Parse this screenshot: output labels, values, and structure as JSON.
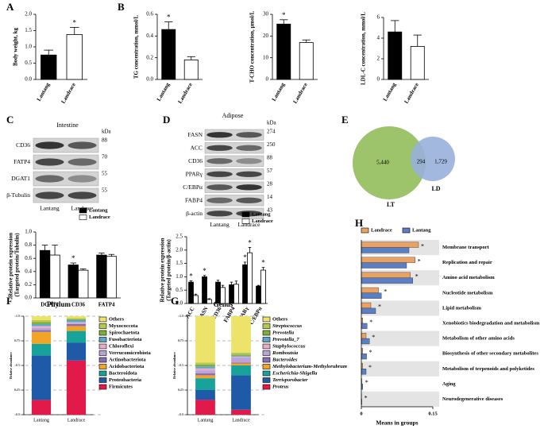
{
  "panels": [
    "A",
    "B",
    "C",
    "D",
    "E",
    "F",
    "G",
    "H"
  ],
  "blots": [
    {
      "title": "Intestine",
      "unit": "kDa",
      "lanes": [
        "Lantang",
        "Landrace"
      ],
      "rows": [
        {
          "label": "CD36",
          "kda": 88
        },
        {
          "label": "FATP4",
          "kda": 70
        },
        {
          "label": "DGAT1",
          "kda": 55
        },
        {
          "label": "β-Tubulin",
          "kda": 55
        }
      ]
    },
    {
      "title": "Adipose",
      "unit": "kDa",
      "lanes": [
        "Lantang",
        "Landrace"
      ],
      "rows": [
        {
          "label": "FASN",
          "kda": 274
        },
        {
          "label": "ACC",
          "kda": 250
        },
        {
          "label": "CD36",
          "kda": 88
        },
        {
          "label": "PPARγ",
          "kda": 57
        },
        {
          "label": "C/EBPα",
          "kda": 28
        },
        {
          "label": "FABP4",
          "kda": 14
        },
        {
          "label": "β-actin",
          "kda": 43
        }
      ]
    }
  ],
  "chart_data": [
    {
      "type": "bar",
      "ylabel": "Body weight, kg",
      "categories": [
        "Lantang",
        "Landrace"
      ],
      "values": [
        0.75,
        1.38
      ],
      "errors": [
        0.15,
        0.22
      ],
      "significance": [
        null,
        "*"
      ],
      "colors": [
        "#000000",
        "#ffffff"
      ],
      "ylim": [
        0,
        2
      ],
      "yticks": [
        {
          "value": 0,
          "label": "0.0"
        },
        0.5,
        {
          "value": 1,
          "label": "1.0"
        },
        1.5,
        {
          "value": 2,
          "label": "2.0"
        }
      ]
    },
    {
      "type": "bar",
      "ylabel": "TG concentration, mmol/L",
      "categories": [
        "Lantang",
        "Landrace"
      ],
      "values": [
        0.46,
        0.18
      ],
      "errors": [
        0.07,
        0.03
      ],
      "significance": [
        "*",
        null
      ],
      "colors": [
        "#000000",
        "#ffffff"
      ],
      "ylim": [
        0,
        0.6
      ],
      "yticks": [
        {
          "value": 0,
          "label": "0.0"
        },
        0.2,
        0.4,
        0.6
      ]
    },
    {
      "type": "bar",
      "ylabel": "T-CHO concentration, μmol/L",
      "categories": [
        "Lantang",
        "Landrace"
      ],
      "values": [
        25.5,
        17
      ],
      "errors": [
        2,
        1.2
      ],
      "significance": [
        "*",
        null
      ],
      "colors": [
        "#000000",
        "#ffffff"
      ],
      "ylim": [
        0,
        30
      ],
      "yticks": [
        0,
        10,
        20,
        30
      ]
    },
    {
      "type": "bar",
      "ylabel": "LDL-C concentration, mmol/L",
      "categories": [
        "Lantang",
        "Landrace"
      ],
      "values": [
        4.6,
        3.2
      ],
      "errors": [
        1.1,
        1.1
      ],
      "colors": [
        "#000000",
        "#ffffff"
      ],
      "ylim": [
        0,
        6
      ],
      "yticks": [
        0,
        2,
        4,
        6
      ]
    },
    {
      "type": "bar",
      "ylabel": [
        "Relative protein expression",
        "(Targeted protein/Tubulin)"
      ],
      "categories": [
        "DGAT1",
        "CD36",
        "FATP4"
      ],
      "series": [
        {
          "name": "Lantang",
          "color": "#000000",
          "values": [
            0.72,
            0.5,
            0.65
          ],
          "errors": [
            0.08,
            0.03,
            0.03
          ],
          "significance": [
            null,
            "*",
            null
          ]
        },
        {
          "name": "Landrace",
          "color": "#ffffff",
          "values": [
            0.65,
            0.42,
            0.63
          ],
          "errors": [
            0.15,
            0.02,
            0.03
          ]
        }
      ],
      "ylim": [
        0,
        1
      ],
      "yticks": [
        {
          "value": 0,
          "label": "0.0"
        },
        0.2,
        0.4,
        0.6,
        0.8,
        {
          "value": 1,
          "label": "1.0"
        }
      ]
    },
    {
      "type": "bar",
      "ylabel": [
        "Relative protein expression",
        "(Targeted protein/β-actin)"
      ],
      "categories": [
        "ACC",
        "FASN",
        "CD36",
        "FABP4",
        "PPARγ",
        "C/EBPα"
      ],
      "series": [
        {
          "name": "Lantang",
          "color": "#000000",
          "values": [
            0.8,
            1.0,
            0.8,
            0.7,
            1.45,
            0.65
          ],
          "errors": [
            0.05,
            0.05,
            0.07,
            0.1,
            0.1,
            0.03
          ],
          "significance": [
            "*",
            "*",
            null,
            null,
            "*",
            null
          ]
        },
        {
          "name": "Landrace",
          "color": "#ffffff",
          "values": [
            0.3,
            0.15,
            0.6,
            0.72,
            1.9,
            1.25
          ],
          "errors": [
            0.05,
            0.03,
            0.08,
            0.12,
            0.2,
            0.1
          ],
          "significance": [
            null,
            null,
            null,
            null,
            "*",
            "*"
          ]
        }
      ],
      "ylim": [
        0,
        2.5
      ],
      "yticks": [
        {
          "value": 0,
          "label": "0.0"
        },
        0.5,
        {
          "value": 1,
          "label": "1.0"
        },
        1.5,
        {
          "value": 2,
          "label": "2.0"
        },
        2.5
      ]
    },
    {
      "type": "venn",
      "sets": [
        {
          "name": "LT",
          "color": "#9dc46a"
        },
        {
          "name": "LD",
          "color": "#98b0dc"
        }
      ],
      "values": [
        5440,
        294,
        1729
      ],
      "value_labels": [
        "5,440",
        "294",
        "1,729"
      ]
    },
    {
      "type": "stacked",
      "title": "Phylum",
      "ylabel": "Relative abundance",
      "categories": [
        "Lantang",
        "Landrace"
      ],
      "grid": true,
      "ylim": [
        0,
        1
      ],
      "yticks": [
        {
          "value": 0,
          "label": "0.0"
        },
        0.25,
        0.5,
        0.75,
        {
          "value": 1,
          "label": "1.0"
        }
      ],
      "series": [
        {
          "name": "Firmicutes",
          "color": "#e2194b",
          "values": [
            0.15,
            0.55
          ]
        },
        {
          "name": "Proteobacteria",
          "color": "#1f5aa8",
          "values": [
            0.45,
            0.18
          ]
        },
        {
          "name": "Bacteroidota",
          "color": "#17a39a",
          "values": [
            0.12,
            0.12
          ]
        },
        {
          "name": "Acidobacteriota",
          "color": "#f2a424",
          "values": [
            0.12,
            0.05
          ]
        },
        {
          "name": "Actinobacteriota",
          "color": "#8a6db2",
          "values": [
            0.02,
            0.02
          ]
        },
        {
          "name": "Verrucomicrobiota",
          "color": "#b9a4d6",
          "values": [
            0.02,
            0.01
          ]
        },
        {
          "name": "Chloroflexi",
          "color": "#e9a9c8",
          "values": [
            0.02,
            0.01
          ]
        },
        {
          "name": "Fusobacteriota",
          "color": "#5aa6c8",
          "values": [
            0.02,
            0.02
          ]
        },
        {
          "name": "Spirochaetota",
          "color": "#7dad3a",
          "values": [
            0.02,
            0.01
          ]
        },
        {
          "name": "Myxococcota",
          "color": "#b5c94a",
          "values": [
            0.02,
            0.01
          ]
        },
        {
          "name": "Others",
          "color": "#eee36a",
          "values": [
            0.04,
            0.02
          ]
        }
      ]
    },
    {
      "type": "stacked",
      "title": "Genus",
      "ylabel": "Relative abundance",
      "categories": [
        "Lantang",
        "Landrace"
      ],
      "grid": true,
      "ylim": [
        0,
        1
      ],
      "yticks": [
        {
          "value": 0,
          "label": "0.0"
        },
        0.25,
        0.5,
        0.75,
        {
          "value": 1,
          "label": "1.0"
        }
      ],
      "series": [
        {
          "name": "Proteus",
          "color": "#e2194b",
          "values": [
            0.15,
            0.05
          ]
        },
        {
          "name": "Terrisporobacter",
          "color": "#1f5aa8",
          "values": [
            0.1,
            0.35
          ]
        },
        {
          "name": "Escherichia-Shigella",
          "color": "#17a39a",
          "values": [
            0.12,
            0.1
          ]
        },
        {
          "name": "Methylobacterium-Methylorubrum",
          "color": "#f2a424",
          "values": [
            0.03,
            0.02
          ]
        },
        {
          "name": "Bacteroides",
          "color": "#8a6db2",
          "values": [
            0.02,
            0.01
          ]
        },
        {
          "name": "Romboutsia",
          "color": "#b9a4d6",
          "values": [
            0.03,
            0.05
          ]
        },
        {
          "name": "Staphylococcus",
          "color": "#e9a9c8",
          "values": [
            0.02,
            0.01
          ]
        },
        {
          "name": "Prevotella_7",
          "color": "#5aa6c8",
          "values": [
            0.02,
            0.01
          ]
        },
        {
          "name": "Prevotella",
          "color": "#7dad3a",
          "values": [
            0.02,
            0.01
          ]
        },
        {
          "name": "Streptococcus",
          "color": "#b5c94a",
          "values": [
            0.02,
            0.02
          ]
        },
        {
          "name": "Others",
          "color": "#eee36a",
          "values": [
            0.47,
            0.37
          ]
        }
      ]
    },
    {
      "type": "barh",
      "xlabel": "Means in groups",
      "xlim": [
        0,
        0.15
      ],
      "xticks": [
        0,
        0.15
      ],
      "categories": [
        "Membrane transport",
        "Replication and repair",
        "Amino acid metabolism",
        "Nucleotide metabolism",
        "Lipid metabolism",
        "Xenobiotics biodegradation and metabolism",
        "Metabolism of other amino acids",
        "Biosynthesis of other secondary metabolites",
        "Metabolism of terpenoids and polyketides",
        "Aging",
        "Neurodegenerative diseases"
      ],
      "category_colors": [
        "#000000",
        "#000000",
        "#000000",
        "#000000",
        "#d02020",
        "#000000",
        "#000000",
        "#000000",
        "#000000",
        "#000000",
        "#000000"
      ],
      "significance": [
        "*",
        "*",
        "*",
        "*",
        "*",
        "*",
        "*",
        "*",
        "*",
        "*",
        "*"
      ],
      "series": [
        {
          "name": "Landrace",
          "color": "#e9a264",
          "values": [
            0.12,
            0.113,
            0.103,
            0.036,
            0.02,
            0.003,
            0.01,
            0.003,
            0.003,
            0.001,
            0.0005
          ]
        },
        {
          "name": "Lantang",
          "color": "#5b7fc4",
          "values": [
            0.1,
            0.095,
            0.108,
            0.042,
            0.03,
            0.012,
            0.017,
            0.011,
            0.01,
            0.003,
            0.001
          ]
        }
      ]
    }
  ]
}
